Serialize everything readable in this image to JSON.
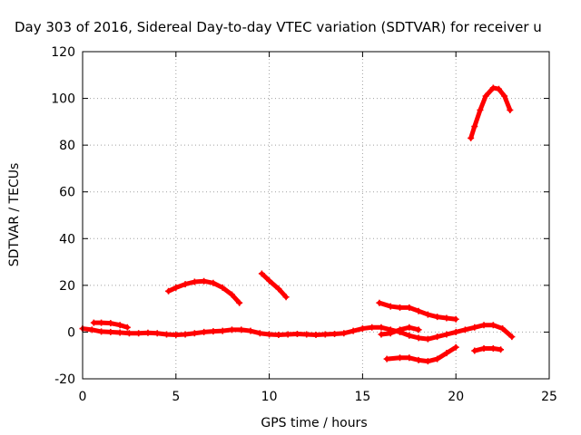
{
  "chart_data": {
    "type": "scatter",
    "title": "Day 303 of 2016, Sidereal Day-to-day VTEC variation (SDTVAR) for receiver u",
    "xlabel": "GPS time / hours",
    "ylabel": "SDTVAR / TECUs",
    "xlim": [
      0,
      25
    ],
    "ylim": [
      -20,
      120
    ],
    "xticks": [
      0,
      5,
      10,
      15,
      20,
      25
    ],
    "yticks": [
      -20,
      0,
      20,
      40,
      60,
      80,
      100,
      120
    ],
    "grid": true,
    "series_color": "#ff0000",
    "series": [
      {
        "points": [
          [
            0.0,
            1.5
          ],
          [
            0.5,
            1.0
          ],
          [
            1.0,
            0.2
          ],
          [
            1.5,
            0.0
          ],
          [
            2.0,
            -0.2
          ],
          [
            2.5,
            -0.5
          ],
          [
            3.0,
            -0.5
          ],
          [
            3.5,
            -0.3
          ],
          [
            4.0,
            -0.5
          ],
          [
            4.5,
            -1.0
          ],
          [
            5.0,
            -1.2
          ],
          [
            5.5,
            -1.0
          ],
          [
            6.0,
            -0.5
          ],
          [
            6.5,
            0.0
          ],
          [
            7.0,
            0.3
          ],
          [
            7.5,
            0.5
          ],
          [
            8.0,
            1.0
          ],
          [
            8.5,
            1.0
          ],
          [
            9.0,
            0.5
          ],
          [
            9.5,
            -0.5
          ],
          [
            10.0,
            -1.0
          ],
          [
            10.5,
            -1.2
          ],
          [
            11.0,
            -1.0
          ],
          [
            11.5,
            -0.8
          ],
          [
            12.0,
            -1.0
          ],
          [
            12.5,
            -1.2
          ],
          [
            13.0,
            -1.0
          ],
          [
            13.5,
            -0.8
          ],
          [
            14.0,
            -0.5
          ],
          [
            14.5,
            0.5
          ],
          [
            15.0,
            1.5
          ],
          [
            15.5,
            2.0
          ],
          [
            16.0,
            2.0
          ],
          [
            16.5,
            1.0
          ],
          [
            17.0,
            0.0
          ],
          [
            17.5,
            -1.5
          ],
          [
            18.0,
            -2.5
          ],
          [
            18.5,
            -3.0
          ],
          [
            19.0,
            -2.0
          ],
          [
            19.5,
            -1.0
          ],
          [
            20.0,
            0.0
          ],
          [
            20.5,
            1.0
          ],
          [
            21.0,
            2.0
          ],
          [
            21.5,
            3.0
          ],
          [
            22.0,
            3.0
          ],
          [
            22.5,
            1.5
          ],
          [
            23.0,
            -2.0
          ]
        ]
      },
      {
        "points": [
          [
            0.6,
            4.0
          ],
          [
            1.0,
            4.0
          ],
          [
            1.5,
            3.8
          ],
          [
            2.0,
            3.0
          ],
          [
            2.4,
            2.0
          ]
        ]
      },
      {
        "points": [
          [
            4.6,
            17.5
          ],
          [
            5.0,
            19.0
          ],
          [
            5.5,
            20.5
          ],
          [
            6.0,
            21.5
          ],
          [
            6.5,
            21.8
          ],
          [
            7.0,
            21.0
          ],
          [
            7.5,
            19.0
          ],
          [
            8.0,
            16.0
          ],
          [
            8.4,
            12.5
          ]
        ]
      },
      {
        "points": [
          [
            9.6,
            25.0
          ],
          [
            10.0,
            22.0
          ],
          [
            10.5,
            18.5
          ],
          [
            10.9,
            15.0
          ]
        ]
      },
      {
        "points": [
          [
            15.9,
            12.5
          ],
          [
            16.5,
            11.0
          ],
          [
            17.0,
            10.5
          ],
          [
            17.5,
            10.5
          ],
          [
            18.0,
            9.0
          ],
          [
            18.5,
            7.5
          ],
          [
            19.0,
            6.5
          ],
          [
            19.5,
            6.0
          ],
          [
            20.0,
            5.5
          ]
        ]
      },
      {
        "points": [
          [
            16.0,
            -1.0
          ],
          [
            16.5,
            -0.5
          ],
          [
            17.0,
            1.0
          ],
          [
            17.5,
            2.0
          ],
          [
            18.0,
            1.0
          ]
        ]
      },
      {
        "points": [
          [
            16.3,
            -11.5
          ],
          [
            17.0,
            -11.0
          ],
          [
            17.5,
            -11.0
          ],
          [
            18.0,
            -12.0
          ],
          [
            18.5,
            -12.5
          ],
          [
            19.0,
            -11.5
          ],
          [
            19.5,
            -9.0
          ],
          [
            20.0,
            -6.5
          ]
        ]
      },
      {
        "points": [
          [
            21.0,
            -8.0
          ],
          [
            21.5,
            -7.0
          ],
          [
            22.0,
            -7.0
          ],
          [
            22.4,
            -7.5
          ]
        ]
      },
      {
        "points": [
          [
            20.8,
            83.0
          ],
          [
            21.0,
            88.0
          ],
          [
            21.3,
            95.0
          ],
          [
            21.6,
            101.0
          ],
          [
            22.0,
            104.5
          ],
          [
            22.3,
            104.0
          ],
          [
            22.6,
            101.0
          ],
          [
            22.9,
            95.0
          ]
        ]
      }
    ]
  }
}
